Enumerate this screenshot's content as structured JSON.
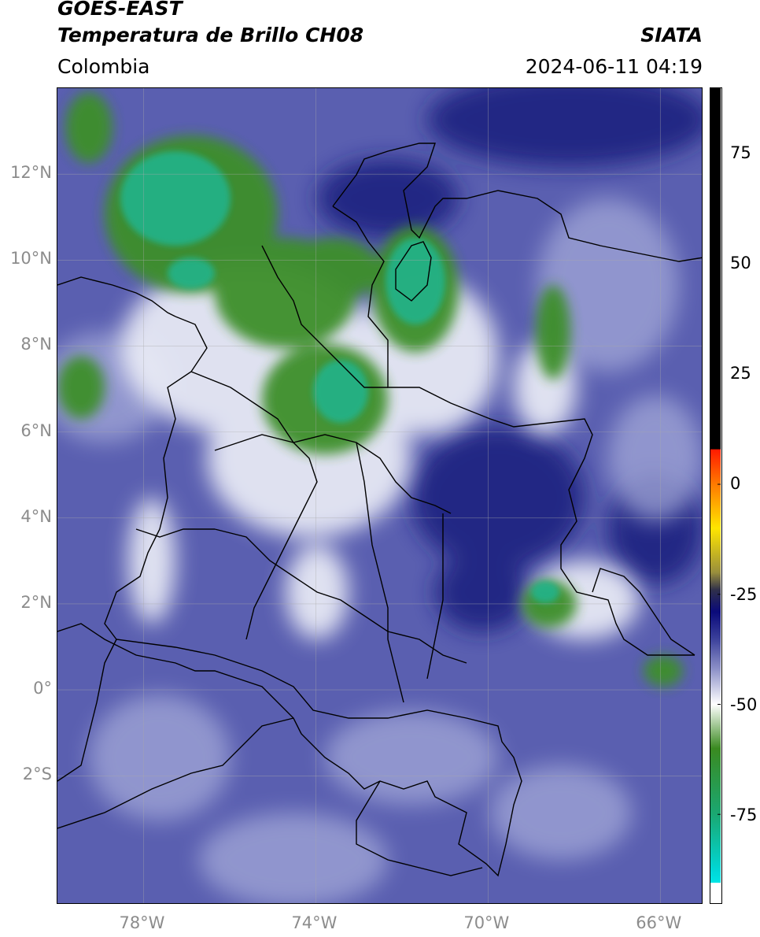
{
  "header": {
    "title_line1": "GOES-EAST",
    "title_line2": "Temperatura de Brillo CH08",
    "region": "Colombia",
    "brand": "SIATA",
    "timestamp": "2024-06-11 04:19"
  },
  "map": {
    "lon_range": [
      -80,
      -65
    ],
    "lat_range": [
      -5,
      14
    ],
    "lat_ticks": [
      {
        "value": 12,
        "label": "12°N"
      },
      {
        "value": 10,
        "label": "10°N"
      },
      {
        "value": 8,
        "label": "8°N"
      },
      {
        "value": 6,
        "label": "6°N"
      },
      {
        "value": 4,
        "label": "4°N"
      },
      {
        "value": 2,
        "label": "2°N"
      },
      {
        "value": 0,
        "label": "0°"
      },
      {
        "value": -2,
        "label": "2°S"
      }
    ],
    "lon_ticks": [
      {
        "value": -78,
        "label": "78°W"
      },
      {
        "value": -74,
        "label": "74°W"
      },
      {
        "value": -70,
        "label": "70°W"
      },
      {
        "value": -66,
        "label": "66°W"
      }
    ],
    "grid": true,
    "colors": {
      "background": "#5a5fb0",
      "dark_blue": "#1b1f78",
      "light_blue": "#a3a8d8",
      "white_cloud": "#eef0f8",
      "green": "#3e8f2c",
      "teal": "#22b38a"
    }
  },
  "colorbar": {
    "range": [
      -95,
      90
    ],
    "ticks": [
      {
        "value": 75,
        "label": "75"
      },
      {
        "value": 50,
        "label": "50"
      },
      {
        "value": 25,
        "label": "25"
      },
      {
        "value": 0,
        "label": "0"
      },
      {
        "value": -25,
        "label": "-25"
      },
      {
        "value": -50,
        "label": "-50"
      },
      {
        "value": -75,
        "label": "-75"
      }
    ],
    "stops": [
      {
        "value": 90,
        "color": "#000000"
      },
      {
        "value": 8,
        "color": "#000000"
      },
      {
        "value": 7.9,
        "color": "#ff1a00"
      },
      {
        "value": 0,
        "color": "#ff7a00"
      },
      {
        "value": -10,
        "color": "#ffe600"
      },
      {
        "value": -20,
        "color": "#9a8f3c"
      },
      {
        "value": -24,
        "color": "#30304a"
      },
      {
        "value": -29,
        "color": "#0a0a7a"
      },
      {
        "value": -35,
        "color": "#3a3f9a"
      },
      {
        "value": -42,
        "color": "#8d91c8"
      },
      {
        "value": -50,
        "color": "#ffffff"
      },
      {
        "value": -60,
        "color": "#3a8a20"
      },
      {
        "value": -75,
        "color": "#1aa872"
      },
      {
        "value": -88,
        "color": "#00d8d8"
      },
      {
        "value": -90.5,
        "color": "#00e5e5"
      },
      {
        "value": -90.6,
        "color": "#ffffff"
      },
      {
        "value": -95,
        "color": "#ffffff"
      }
    ]
  }
}
